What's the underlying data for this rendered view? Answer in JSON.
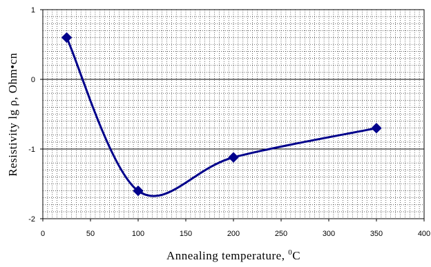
{
  "chart_data": {
    "type": "line",
    "title": "",
    "xlabel": "Annealing temperature, ",
    "xlabel_sup": "0",
    "xlabel_unit": "C",
    "ylabel": "Resistivity lg ρ, Ohm•cn",
    "xlim": [
      0,
      400
    ],
    "ylim": [
      -2,
      1
    ],
    "x_ticks": [
      "0",
      "50",
      "100",
      "150",
      "200",
      "250",
      "300",
      "350",
      "400"
    ],
    "y_ticks": [
      "-2",
      "-1",
      "0",
      "1"
    ],
    "grid": true,
    "series": [
      {
        "x": [
          25,
          100,
          200,
          350
        ],
        "y": [
          0.6,
          -1.6,
          -1.12,
          -0.7
        ],
        "color": "#00008B",
        "marker": "diamond",
        "smooth": true
      }
    ]
  }
}
